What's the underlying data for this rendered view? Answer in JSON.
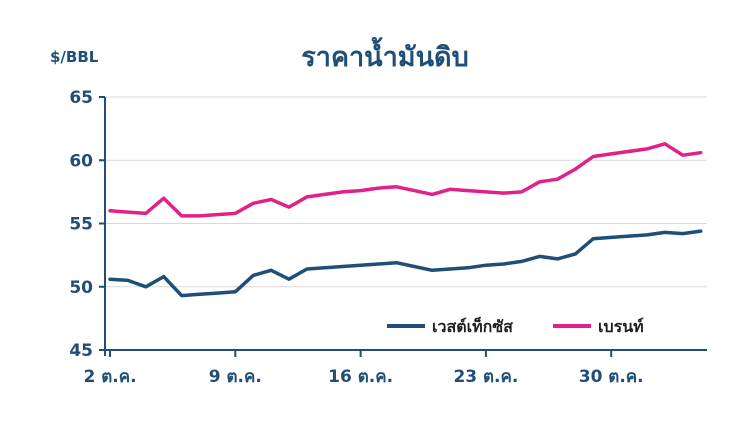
{
  "chart_data": {
    "type": "line",
    "title": "ราคาน้ำมันดิบ",
    "ylabel": "$/BBL",
    "xlabel": "",
    "ylim": [
      45,
      65
    ],
    "yticks": [
      45,
      50,
      55,
      60,
      65
    ],
    "xlim": [
      0,
      34
    ],
    "xticks": [
      {
        "x": 0,
        "label": "2 ต.ค."
      },
      {
        "x": 7,
        "label": "9 ต.ค."
      },
      {
        "x": 14,
        "label": "16 ต.ค."
      },
      {
        "x": 21,
        "label": "23 ต.ค."
      },
      {
        "x": 28,
        "label": "30 ต.ค."
      }
    ],
    "grid": true,
    "legend_position": "bottom-right",
    "series": [
      {
        "name": "เวสต์เท็กซัส",
        "color": "#1f4e79",
        "points": [
          [
            0,
            50.6
          ],
          [
            1,
            50.5
          ],
          [
            2,
            50.0
          ],
          [
            3,
            50.8
          ],
          [
            4,
            49.3
          ],
          [
            5,
            49.4
          ],
          [
            6,
            49.5
          ],
          [
            7,
            49.6
          ],
          [
            8,
            50.9
          ],
          [
            9,
            51.3
          ],
          [
            10,
            50.6
          ],
          [
            11,
            51.4
          ],
          [
            12,
            51.5
          ],
          [
            13,
            51.6
          ],
          [
            14,
            51.7
          ],
          [
            15,
            51.8
          ],
          [
            16,
            51.9
          ],
          [
            17,
            51.6
          ],
          [
            18,
            51.3
          ],
          [
            19,
            51.4
          ],
          [
            20,
            51.5
          ],
          [
            21,
            51.7
          ],
          [
            22,
            51.8
          ],
          [
            23,
            52.0
          ],
          [
            24,
            52.4
          ],
          [
            25,
            52.2
          ],
          [
            26,
            52.6
          ],
          [
            27,
            53.8
          ],
          [
            28,
            53.9
          ],
          [
            29,
            54.0
          ],
          [
            30,
            54.1
          ],
          [
            31,
            54.3
          ],
          [
            32,
            54.2
          ],
          [
            33,
            54.4
          ]
        ]
      },
      {
        "name": "เบรนท์",
        "color": "#e0218a",
        "points": [
          [
            0,
            56.0
          ],
          [
            1,
            55.9
          ],
          [
            2,
            55.8
          ],
          [
            3,
            57.0
          ],
          [
            4,
            55.6
          ],
          [
            5,
            55.6
          ],
          [
            6,
            55.7
          ],
          [
            7,
            55.8
          ],
          [
            8,
            56.6
          ],
          [
            9,
            56.9
          ],
          [
            10,
            56.3
          ],
          [
            11,
            57.1
          ],
          [
            12,
            57.3
          ],
          [
            13,
            57.5
          ],
          [
            14,
            57.6
          ],
          [
            15,
            57.8
          ],
          [
            16,
            57.9
          ],
          [
            17,
            57.6
          ],
          [
            18,
            57.3
          ],
          [
            19,
            57.7
          ],
          [
            20,
            57.6
          ],
          [
            21,
            57.5
          ],
          [
            22,
            57.4
          ],
          [
            23,
            57.5
          ],
          [
            24,
            58.3
          ],
          [
            25,
            58.5
          ],
          [
            26,
            59.3
          ],
          [
            27,
            60.3
          ],
          [
            28,
            60.5
          ],
          [
            29,
            60.7
          ],
          [
            30,
            60.9
          ],
          [
            31,
            61.3
          ],
          [
            32,
            60.4
          ],
          [
            33,
            60.6
          ]
        ]
      }
    ]
  }
}
